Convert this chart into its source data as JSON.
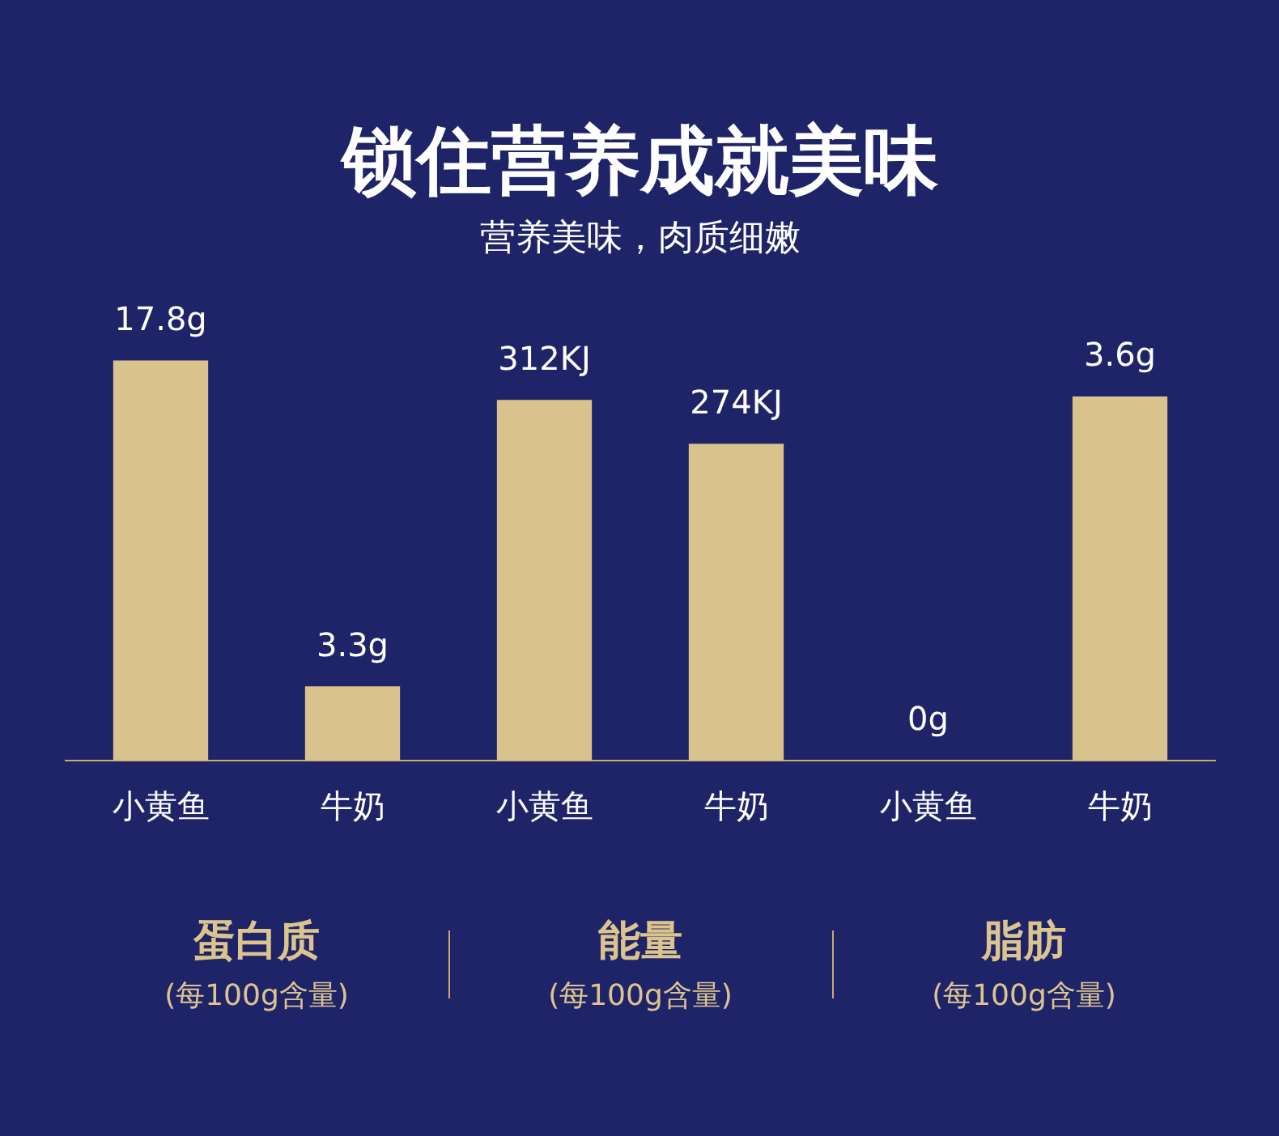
{
  "chart_data": [
    {
      "type": "bar",
      "xlabel": "蛋白质",
      "annotations": [
        "(每100g含量)"
      ],
      "categories": [
        "小黄鱼",
        "牛奶"
      ],
      "values": [
        17.8,
        3.3
      ],
      "value_labels": [
        "17.8g",
        "3.3g"
      ],
      "color": "#d9c28c"
    },
    {
      "type": "bar",
      "title": "锁住营养成就美味",
      "subtitle": "营养美味，肉质细嫩",
      "xlabel": "能量",
      "annotations": [
        "(每100g含量)"
      ],
      "categories": [
        "小黄鱼",
        "牛奶"
      ],
      "values": [
        312,
        274
      ],
      "value_labels": [
        "312KJ",
        "274KJ"
      ],
      "color": "#d9c28c"
    },
    {
      "type": "bar",
      "xlabel": "脂肪",
      "annotations": [
        "(每100g含量)"
      ],
      "categories": [
        "小黄鱼",
        "牛奶"
      ],
      "values": [
        0,
        3.6
      ],
      "value_labels": [
        "0g",
        "3.6g"
      ],
      "color": "#d9c28c"
    }
  ]
}
